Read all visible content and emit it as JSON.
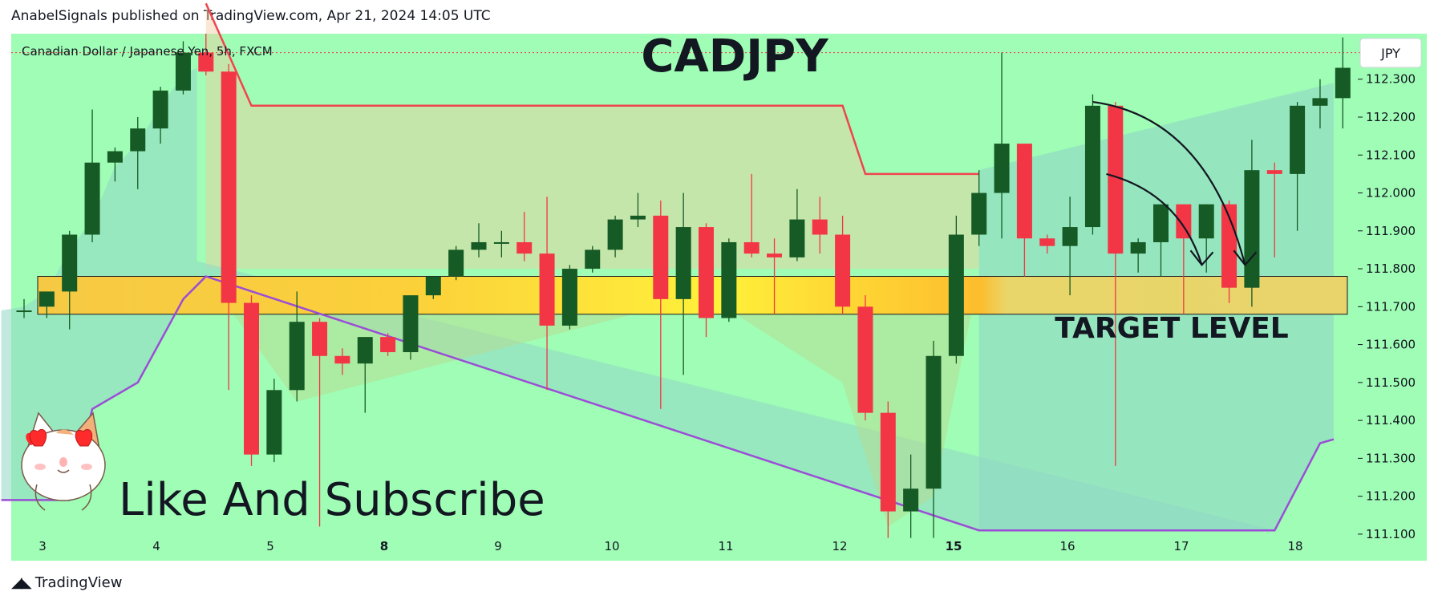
{
  "header": {
    "published_line": "AnabelSignals published on TradingView.com, Apr 21, 2024 14:05 UTC"
  },
  "chart_header": {
    "symbol_description": "Canadian Dollar / Japanese Yen, 5h, FXCM",
    "currency_badge": "JPY"
  },
  "annotations": {
    "title": "CADJPY",
    "target_label": "TARGET LEVEL",
    "cta": "Like And Subscribe",
    "mascot_icon": "cat-heart-eyes-icon"
  },
  "footer": {
    "brand": "TradingView",
    "logo_icon": "tradingview-logo-icon"
  },
  "colors": {
    "background": "#9ffdb5",
    "bull": "#165a25",
    "bear": "#f23645",
    "zone": "#ffe84a",
    "upper_band": "#f0454f",
    "lower_band": "#9b4dd6"
  },
  "chart_data": {
    "type": "candlestick",
    "symbol": "CADJPY",
    "interval": "5h",
    "y_ticks": [
      "112.300",
      "112.200",
      "112.100",
      "112.000",
      "111.900",
      "111.800",
      "111.700",
      "111.600",
      "111.500",
      "111.400",
      "111.300",
      "111.200",
      "111.100"
    ],
    "x_ticks": [
      {
        "label": "3",
        "bold": false
      },
      {
        "label": "4",
        "bold": false
      },
      {
        "label": "5",
        "bold": false
      },
      {
        "label": "8",
        "bold": true
      },
      {
        "label": "9",
        "bold": false
      },
      {
        "label": "10",
        "bold": false
      },
      {
        "label": "11",
        "bold": false
      },
      {
        "label": "12",
        "bold": false
      },
      {
        "label": "15",
        "bold": true
      },
      {
        "label": "16",
        "bold": false
      },
      {
        "label": "17",
        "bold": false
      },
      {
        "label": "18",
        "bold": false
      }
    ],
    "ylim": [
      111.03,
      112.42
    ],
    "target_zone": [
      111.68,
      111.78
    ],
    "candles": [
      {
        "o": 111.69,
        "h": 111.72,
        "l": 111.67,
        "c": 111.69
      },
      {
        "o": 111.7,
        "h": 111.74,
        "l": 111.67,
        "c": 111.74
      },
      {
        "o": 111.74,
        "h": 111.9,
        "l": 111.64,
        "c": 111.89
      },
      {
        "o": 111.89,
        "h": 112.22,
        "l": 111.87,
        "c": 112.08
      },
      {
        "o": 112.08,
        "h": 112.12,
        "l": 112.03,
        "c": 112.11
      },
      {
        "o": 112.11,
        "h": 112.2,
        "l": 112.01,
        "c": 112.17
      },
      {
        "o": 112.17,
        "h": 112.28,
        "l": 112.13,
        "c": 112.27
      },
      {
        "o": 112.27,
        "h": 112.4,
        "l": 112.26,
        "c": 112.37
      },
      {
        "o": 112.37,
        "h": 112.42,
        "l": 112.31,
        "c": 112.32
      },
      {
        "o": 112.32,
        "h": 112.34,
        "l": 111.48,
        "c": 111.71
      },
      {
        "o": 111.71,
        "h": 111.73,
        "l": 111.28,
        "c": 111.31
      },
      {
        "o": 111.31,
        "h": 111.51,
        "l": 111.29,
        "c": 111.48
      },
      {
        "o": 111.48,
        "h": 111.74,
        "l": 111.45,
        "c": 111.66
      },
      {
        "o": 111.66,
        "h": 111.67,
        "l": 111.12,
        "c": 111.57
      },
      {
        "o": 111.57,
        "h": 111.59,
        "l": 111.52,
        "c": 111.55
      },
      {
        "o": 111.55,
        "h": 111.62,
        "l": 111.42,
        "c": 111.62
      },
      {
        "o": 111.62,
        "h": 111.63,
        "l": 111.57,
        "c": 111.58
      },
      {
        "o": 111.58,
        "h": 111.73,
        "l": 111.56,
        "c": 111.73
      },
      {
        "o": 111.73,
        "h": 111.78,
        "l": 111.72,
        "c": 111.78
      },
      {
        "o": 111.78,
        "h": 111.86,
        "l": 111.77,
        "c": 111.85
      },
      {
        "o": 111.85,
        "h": 111.92,
        "l": 111.83,
        "c": 111.87
      },
      {
        "o": 111.87,
        "h": 111.9,
        "l": 111.83,
        "c": 111.87
      },
      {
        "o": 111.87,
        "h": 111.95,
        "l": 111.82,
        "c": 111.84
      },
      {
        "o": 111.84,
        "h": 111.99,
        "l": 111.48,
        "c": 111.65
      },
      {
        "o": 111.65,
        "h": 111.81,
        "l": 111.64,
        "c": 111.8
      },
      {
        "o": 111.8,
        "h": 111.86,
        "l": 111.79,
        "c": 111.85
      },
      {
        "o": 111.85,
        "h": 111.94,
        "l": 111.83,
        "c": 111.93
      },
      {
        "o": 111.93,
        "h": 112.0,
        "l": 111.91,
        "c": 111.94
      },
      {
        "o": 111.94,
        "h": 111.98,
        "l": 111.43,
        "c": 111.72
      },
      {
        "o": 111.72,
        "h": 112.0,
        "l": 111.52,
        "c": 111.91
      },
      {
        "o": 111.91,
        "h": 111.92,
        "l": 111.62,
        "c": 111.67
      },
      {
        "o": 111.67,
        "h": 111.88,
        "l": 111.66,
        "c": 111.87
      },
      {
        "o": 111.87,
        "h": 112.05,
        "l": 111.83,
        "c": 111.84
      },
      {
        "o": 111.84,
        "h": 111.88,
        "l": 111.68,
        "c": 111.83
      },
      {
        "o": 111.83,
        "h": 112.01,
        "l": 111.82,
        "c": 111.93
      },
      {
        "o": 111.93,
        "h": 111.99,
        "l": 111.84,
        "c": 111.89
      },
      {
        "o": 111.89,
        "h": 111.94,
        "l": 111.68,
        "c": 111.7
      },
      {
        "o": 111.7,
        "h": 111.73,
        "l": 111.4,
        "c": 111.42
      },
      {
        "o": 111.42,
        "h": 111.45,
        "l": 111.09,
        "c": 111.16
      },
      {
        "o": 111.16,
        "h": 111.31,
        "l": 111.09,
        "c": 111.22
      },
      {
        "o": 111.22,
        "h": 111.61,
        "l": 111.09,
        "c": 111.57
      },
      {
        "o": 111.57,
        "h": 111.94,
        "l": 111.55,
        "c": 111.89
      },
      {
        "o": 111.89,
        "h": 112.06,
        "l": 111.86,
        "c": 112.0
      },
      {
        "o": 112.0,
        "h": 112.37,
        "l": 111.88,
        "c": 112.13
      },
      {
        "o": 112.13,
        "h": 112.13,
        "l": 111.78,
        "c": 111.88
      },
      {
        "o": 111.88,
        "h": 111.89,
        "l": 111.84,
        "c": 111.86
      },
      {
        "o": 111.86,
        "h": 111.99,
        "l": 111.73,
        "c": 111.91
      },
      {
        "o": 111.91,
        "h": 112.26,
        "l": 111.89,
        "c": 112.23
      },
      {
        "o": 112.23,
        "h": 112.24,
        "l": 111.28,
        "c": 111.84
      },
      {
        "o": 111.84,
        "h": 111.88,
        "l": 111.79,
        "c": 111.87
      },
      {
        "o": 111.87,
        "h": 111.97,
        "l": 111.78,
        "c": 111.97
      },
      {
        "o": 111.97,
        "h": 111.97,
        "l": 111.68,
        "c": 111.88
      },
      {
        "o": 111.88,
        "h": 111.97,
        "l": 111.79,
        "c": 111.97
      },
      {
        "o": 111.97,
        "h": 111.98,
        "l": 111.71,
        "c": 111.75
      },
      {
        "o": 111.75,
        "h": 112.14,
        "l": 111.7,
        "c": 112.06
      },
      {
        "o": 112.06,
        "h": 112.08,
        "l": 111.83,
        "c": 112.05
      },
      {
        "o": 112.05,
        "h": 112.24,
        "l": 111.9,
        "c": 112.23
      },
      {
        "o": 112.23,
        "h": 112.3,
        "l": 112.17,
        "c": 112.25
      },
      {
        "o": 112.25,
        "h": 112.41,
        "l": 112.17,
        "c": 112.33
      }
    ],
    "upper_band_line": [
      [
        8,
        112.5
      ],
      [
        10,
        112.23
      ],
      [
        36,
        112.23
      ],
      [
        37,
        112.05
      ],
      [
        42,
        112.05
      ]
    ],
    "lower_band_line": [
      [
        -1,
        111.19
      ],
      [
        2,
        111.19
      ],
      [
        3,
        111.43
      ],
      [
        5,
        111.5
      ],
      [
        7,
        111.72
      ],
      [
        8,
        111.78
      ],
      [
        42,
        111.11
      ],
      [
        55,
        111.11
      ],
      [
        57,
        111.34
      ],
      [
        57.6,
        111.35
      ]
    ],
    "upper_band_fill_left": [
      [
        -1,
        111.7
      ],
      [
        3,
        112.03
      ],
      [
        6,
        112.21
      ],
      [
        8,
        112.33
      ],
      [
        9,
        112.33
      ]
    ],
    "cloud_left": [
      [
        -1,
        111.69
      ],
      [
        0,
        111.7
      ],
      [
        1,
        111.74
      ],
      [
        2,
        111.85
      ],
      [
        3,
        111.93
      ],
      [
        4,
        112.07
      ],
      [
        5,
        112.13
      ],
      [
        6,
        112.23
      ],
      [
        7,
        112.31
      ],
      [
        7.6,
        112.33
      ]
    ],
    "cloud_right": [
      [
        42,
        112.06
      ],
      [
        57.6,
        112.29
      ]
    ],
    "arrows": [
      {
        "from": [
          47,
          112.24
        ],
        "ctrl": [
          52,
          112.2
        ],
        "to": [
          53.7,
          111.81
        ]
      },
      {
        "from": [
          47.6,
          112.05
        ],
        "ctrl": [
          50.8,
          112.0
        ],
        "to": [
          51.8,
          111.81
        ]
      }
    ]
  }
}
